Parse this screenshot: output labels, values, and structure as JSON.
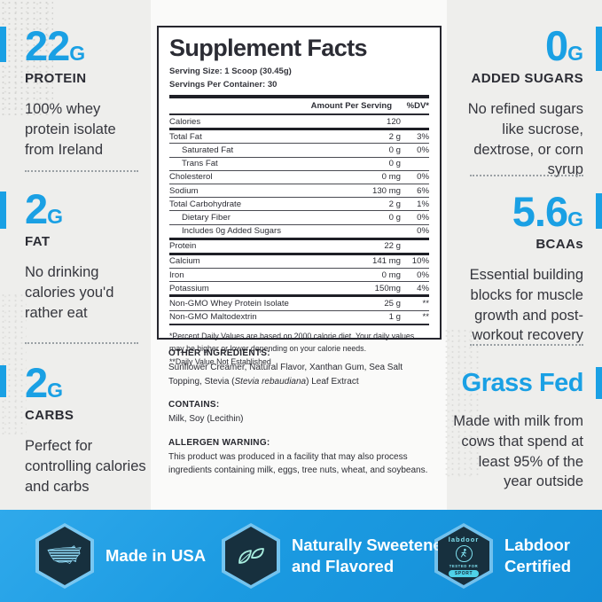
{
  "colors": {
    "accent_blue": "#1aa0e4",
    "dark_text": "#2b2c34",
    "footer_blue": "#1b9ae1",
    "hexagon_navy": "#17303e",
    "icon_teal": "#7fe0ef",
    "background": "#eeeeec"
  },
  "stats": {
    "protein": {
      "value": "22",
      "unit": "G",
      "label": "PROTEIN",
      "desc": "100% whey protein isolate from Ireland"
    },
    "fat": {
      "value": "2",
      "unit": "G",
      "label": "FAT",
      "desc": "No drinking calories you'd rather eat"
    },
    "carbs": {
      "value": "2",
      "unit": "G",
      "label": "CARBS",
      "desc": "Perfect for controlling calories and carbs"
    },
    "added_sugars": {
      "value": "0",
      "unit": "G",
      "label": "ADDED SUGARS",
      "desc": "No refined sugars like sucrose, dextrose, or corn syrup"
    },
    "bcaas": {
      "value": "5.6",
      "unit": "G",
      "label": "BCAAs",
      "desc": "Essential building blocks for muscle growth and post-workout recovery"
    },
    "grass_fed": {
      "heading": "Grass Fed",
      "desc": "Made with milk from cows that spend at least 95% of the year outside"
    }
  },
  "label": {
    "title": "Supplement Facts",
    "serving_size": "Serving Size: 1 Scoop (30.45g)",
    "servings_per_container": "Servings Per Container: 30",
    "col_amount": "Amount Per Serving",
    "col_dv": "%DV*",
    "rows": [
      {
        "name": "Calories",
        "amount": "120",
        "dv": "",
        "indent": false,
        "border": "thick"
      },
      {
        "name": "Total Fat",
        "amount": "2 g",
        "dv": "3%",
        "indent": false,
        "border": "thin"
      },
      {
        "name": "Saturated Fat",
        "amount": "0 g",
        "dv": "0%",
        "indent": true,
        "border": "thin"
      },
      {
        "name": "Trans Fat",
        "amount": "0 g",
        "dv": "",
        "indent": true,
        "border": "thin"
      },
      {
        "name": "Cholesterol",
        "amount": "0 mg",
        "dv": "0%",
        "indent": false,
        "border": "thin"
      },
      {
        "name": "Sodium",
        "amount": "130 mg",
        "dv": "6%",
        "indent": false,
        "border": "thin"
      },
      {
        "name": "Total Carbohydrate",
        "amount": "2 g",
        "dv": "1%",
        "indent": false,
        "border": "thin"
      },
      {
        "name": "Dietary Fiber",
        "amount": "0 g",
        "dv": "0%",
        "indent": true,
        "border": "thin"
      },
      {
        "name": "Includes 0g Added Sugars",
        "amount": "",
        "dv": "0%",
        "indent": true,
        "border": "thick"
      },
      {
        "name": "Protein",
        "amount": "22 g",
        "dv": "",
        "indent": false,
        "border": "thick"
      },
      {
        "name": "Calcium",
        "amount": "141 mg",
        "dv": "10%",
        "indent": false,
        "border": "thin"
      },
      {
        "name": "Iron",
        "amount": "0 mg",
        "dv": "0%",
        "indent": false,
        "border": "thin"
      },
      {
        "name": "Potassium",
        "amount": "150mg",
        "dv": "4%",
        "indent": false,
        "border": "thick"
      },
      {
        "name": "Non-GMO Whey Protein Isolate",
        "amount": "25 g",
        "dv": "**",
        "indent": false,
        "border": "thin"
      },
      {
        "name": "Non-GMO Maltodextrin",
        "amount": "1 g",
        "dv": "**",
        "indent": false,
        "border": "medium"
      }
    ],
    "footnote1": "*Percent Daily Values are based on 2000 calorie diet. Your daily values may be higher or lower depending on your calorie needs.",
    "footnote2": "**Daily Value Not Established"
  },
  "ingredients": {
    "other_heading": "OTHER INGREDIENTS:",
    "other_body_1": "Sunflower Creamer, Natural Flavor, Xanthan Gum, Sea Salt Topping, Stevia (",
    "other_italic": "Stevia rebaudiana",
    "other_body_2": ") Leaf Extract",
    "contains_heading": "CONTAINS:",
    "contains_body": "Milk, Soy (Lecithin)",
    "allergen_heading": "ALLERGEN WARNING:",
    "allergen_body": "This product was produced in a facility that may also process ingredients containing milk, eggs, tree nuts, wheat, and soybeans."
  },
  "footer": {
    "badges": [
      {
        "icon": "usa-map-icon",
        "text": "Made in USA"
      },
      {
        "icon": "leaves-icon",
        "text": "Naturally Sweetened and Flavored"
      },
      {
        "icon": "labdoor-icon",
        "text": "Labdoor Certified",
        "logo_word": "labdoor",
        "logo_tested": "TESTED FOR",
        "logo_sport": "SPORT"
      }
    ]
  }
}
